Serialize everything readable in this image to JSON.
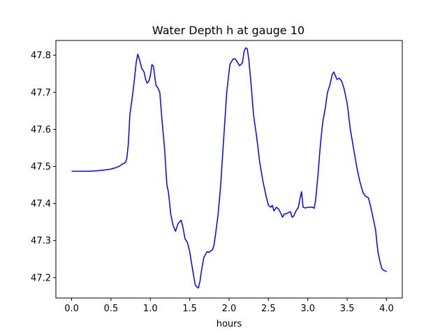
{
  "chart_data": {
    "type": "line",
    "title": "Water Depth h at gauge 10",
    "xlabel": "hours",
    "ylabel": "",
    "xlim": [
      -0.2,
      4.2
    ],
    "ylim": [
      47.145,
      47.84
    ],
    "x_ticks": [
      0.0,
      0.5,
      1.0,
      1.5,
      2.0,
      2.5,
      3.0,
      3.5,
      4.0
    ],
    "x_tick_labels": [
      "0.0",
      "0.5",
      "1.0",
      "1.5",
      "2.0",
      "2.5",
      "3.0",
      "3.5",
      "4.0"
    ],
    "y_ticks": [
      47.2,
      47.3,
      47.4,
      47.5,
      47.6,
      47.7,
      47.8
    ],
    "y_tick_labels": [
      "47.2",
      "47.3",
      "47.4",
      "47.5",
      "47.6",
      "47.7",
      "47.8"
    ],
    "grid": false,
    "series": [
      {
        "color": "#0000ff",
        "x": [
          0.0,
          0.1,
          0.2,
          0.3,
          0.35,
          0.4,
          0.5,
          0.55,
          0.6,
          0.65,
          0.68,
          0.7,
          0.72,
          0.74,
          0.76,
          0.79,
          0.82,
          0.84,
          0.86,
          0.89,
          0.92,
          0.94,
          0.96,
          0.98,
          1.0,
          1.02,
          1.04,
          1.07,
          1.1,
          1.12,
          1.15,
          1.18,
          1.21,
          1.23,
          1.26,
          1.29,
          1.32,
          1.35,
          1.39,
          1.41,
          1.44,
          1.47,
          1.5,
          1.53,
          1.57,
          1.59,
          1.61,
          1.63,
          1.65,
          1.68,
          1.72,
          1.75,
          1.77,
          1.79,
          1.81,
          1.83,
          1.86,
          1.89,
          1.93,
          1.97,
          2.01,
          2.05,
          2.08,
          2.11,
          2.13,
          2.15,
          2.17,
          2.19,
          2.21,
          2.23,
          2.25,
          2.28,
          2.31,
          2.35,
          2.39,
          2.43,
          2.47,
          2.5,
          2.53,
          2.55,
          2.57,
          2.6,
          2.63,
          2.66,
          2.68,
          2.7,
          2.72,
          2.75,
          2.78,
          2.8,
          2.82,
          2.85,
          2.88,
          2.9,
          2.92,
          2.94,
          2.97,
          3.0,
          3.03,
          3.06,
          3.08,
          3.1,
          3.13,
          3.16,
          3.19,
          3.22,
          3.25,
          3.28,
          3.31,
          3.33,
          3.35,
          3.37,
          3.4,
          3.43,
          3.46,
          3.5,
          3.54,
          3.58,
          3.62,
          3.66,
          3.7,
          3.73,
          3.75,
          3.77,
          3.8,
          3.83,
          3.86,
          3.89,
          3.9,
          3.92,
          3.94,
          3.96,
          3.98,
          4.0
        ],
        "y": [
          47.487,
          47.487,
          47.487,
          47.488,
          47.489,
          47.49,
          47.493,
          47.496,
          47.5,
          47.507,
          47.51,
          47.52,
          47.56,
          47.64,
          47.67,
          47.72,
          47.78,
          47.803,
          47.79,
          47.765,
          47.755,
          47.735,
          47.725,
          47.73,
          47.745,
          47.775,
          47.77,
          47.72,
          47.71,
          47.7,
          47.62,
          47.55,
          47.45,
          47.43,
          47.37,
          47.34,
          47.325,
          47.345,
          47.355,
          47.34,
          47.305,
          47.295,
          47.27,
          47.23,
          47.18,
          47.175,
          47.172,
          47.19,
          47.22,
          47.255,
          47.27,
          47.268,
          47.273,
          47.275,
          47.29,
          47.32,
          47.37,
          47.44,
          47.57,
          47.7,
          47.775,
          47.79,
          47.79,
          47.78,
          47.772,
          47.775,
          47.78,
          47.81,
          47.82,
          47.818,
          47.79,
          47.72,
          47.64,
          47.58,
          47.51,
          47.46,
          47.42,
          47.395,
          47.39,
          47.395,
          47.38,
          47.39,
          47.385,
          47.372,
          47.363,
          47.372,
          47.372,
          47.375,
          47.378,
          47.363,
          47.366,
          47.38,
          47.39,
          47.413,
          47.432,
          47.39,
          47.388,
          47.39,
          47.39,
          47.39,
          47.387,
          47.41,
          47.48,
          47.56,
          47.62,
          47.655,
          47.7,
          47.72,
          47.748,
          47.755,
          47.745,
          47.735,
          47.738,
          47.73,
          47.71,
          47.67,
          47.6,
          47.55,
          47.5,
          47.46,
          47.43,
          47.42,
          47.418,
          47.415,
          47.39,
          47.36,
          47.33,
          47.27,
          47.26,
          47.24,
          47.225,
          47.22,
          47.218,
          47.217
        ]
      }
    ]
  }
}
